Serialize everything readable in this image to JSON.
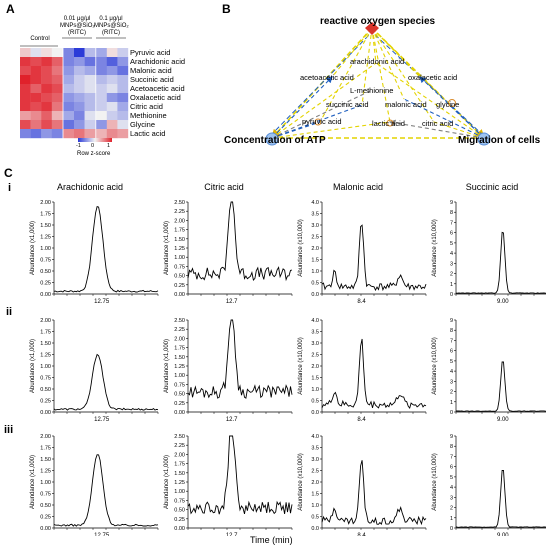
{
  "panels": {
    "A": "A",
    "B": "B",
    "C": "C"
  },
  "heatmap": {
    "groups": [
      {
        "label": "Control",
        "cols": 4
      },
      {
        "label_lines": [
          "0.01 μg/μl",
          "MNPs@SiO₂",
          "(RITC)"
        ],
        "cols": 3
      },
      {
        "label_lines": [
          "0.1 μg/μl",
          "MNPs@SiO₂",
          "(RITC)"
        ],
        "cols": 3
      }
    ],
    "rows": [
      "Pyruvic acid",
      "Arachidonic acid",
      "Malonic acid",
      "Succinic acid",
      "Acetoacetic acid",
      "Oxalacetic acid",
      "Citric acid",
      "Methionine",
      "Glycine",
      "Lactic acid"
    ],
    "values": [
      [
        0.2,
        -0.1,
        0.1,
        0.0,
        -0.6,
        -1.0,
        -0.3,
        -0.4,
        0.1,
        -0.2
      ],
      [
        0.9,
        0.8,
        0.9,
        0.7,
        -0.6,
        -0.5,
        -0.7,
        -0.6,
        -0.8,
        -0.5
      ],
      [
        0.8,
        0.9,
        0.8,
        0.6,
        -0.5,
        -0.3,
        -0.4,
        -0.6,
        -0.5,
        -0.7
      ],
      [
        1.0,
        0.9,
        0.8,
        0.7,
        -0.4,
        -0.2,
        -0.1,
        -0.3,
        -0.2,
        -0.3
      ],
      [
        0.9,
        0.7,
        0.9,
        0.8,
        -0.3,
        -0.2,
        -0.1,
        -0.2,
        -0.1,
        -0.3
      ],
      [
        0.9,
        0.9,
        0.8,
        0.7,
        -0.5,
        -0.4,
        -0.3,
        -0.2,
        -0.5,
        -0.6
      ],
      [
        0.9,
        0.8,
        0.9,
        0.6,
        -0.6,
        -0.5,
        -0.3,
        -0.2,
        -0.1,
        -0.4
      ],
      [
        0.4,
        0.5,
        0.7,
        0.3,
        -0.4,
        -0.6,
        -0.1,
        0.0,
        -0.2,
        -0.3
      ],
      [
        0.8,
        0.6,
        0.8,
        0.6,
        -0.7,
        -0.5,
        -0.2,
        -0.5,
        0.3,
        -0.1
      ],
      [
        -0.6,
        -0.7,
        -0.5,
        -0.6,
        0.5,
        0.6,
        0.4,
        0.3,
        0.5,
        0.4
      ]
    ],
    "scale": {
      "min": "-1",
      "mid": "0",
      "max": "1",
      "label": "Row z-score"
    },
    "colors": {
      "low": "#2b3bd8",
      "mid": "#f2f2f2",
      "high": "#e0212b"
    }
  },
  "network": {
    "hubs": [
      "reactive oxygen species",
      "Concentration of ATP",
      "Migration of cells"
    ],
    "metabolites": [
      "arachidonic acid",
      "acetoacetic acid",
      "oxalacetic acid",
      "L-methionine",
      "succinic acid",
      "malonic acid",
      "glycine",
      "pyruvic acid",
      "lactic acid",
      "citric acid"
    ],
    "colors": {
      "yellow": "#e3d300",
      "blue": "#1f5fbf",
      "gray": "#7f7f7f",
      "orange": "#d98a2b"
    }
  },
  "chromatograms": {
    "rows": [
      "i",
      "ii",
      "iii"
    ],
    "columns": [
      {
        "title": "Arachidonic acid",
        "ylabel": "Abundance (x1,000)",
        "xtick": "12.75",
        "yticks": [
          "0.00",
          "0.25",
          "0.50",
          "0.75",
          "1.00",
          "1.25",
          "1.50",
          "1.75",
          "2.00"
        ],
        "ymax": 2.0
      },
      {
        "title": "Citric acid",
        "ylabel": "Abundance (x1,000)",
        "xtick": "12.7",
        "yticks": [
          "0.00",
          "0.25",
          "0.50",
          "0.75",
          "1.00",
          "1.25",
          "1.50",
          "1.75",
          "2.00",
          "2.25",
          "2.50"
        ],
        "ymax": 2.5
      },
      {
        "title": "Malonic acid",
        "ylabel": "Abundance (x10,000)",
        "xtick": "8.4",
        "yticks": [
          "0.0",
          "0.5",
          "1.0",
          "1.5",
          "2.0",
          "2.5",
          "3.0",
          "3.5",
          "4.0"
        ],
        "ymax": 4.0
      },
      {
        "title": "Succinic acid",
        "ylabel": "Abundance (x10,000)",
        "xtick": "9.00",
        "yticks": [
          "0",
          "1",
          "2",
          "3",
          "4",
          "5",
          "6",
          "7",
          "8",
          "9"
        ],
        "ymax": 9.0
      }
    ],
    "xlabel": "Time (min)"
  },
  "chart_data": [
    {
      "type": "heatmap",
      "rows": [
        "Pyruvic acid",
        "Arachidonic acid",
        "Malonic acid",
        "Succinic acid",
        "Acetoacetic acid",
        "Oxalacetic acid",
        "Citric acid",
        "Methionine",
        "Glycine",
        "Lactic acid"
      ],
      "legend": "Row z-score",
      "range": [
        -1,
        1
      ]
    },
    {
      "type": "line",
      "title": "Arachidonic acid",
      "peaks": {
        "i": 1.85,
        "ii": 1.2,
        "iii": 1.55
      },
      "ylim": [
        0,
        2.0
      ]
    },
    {
      "type": "line",
      "title": "Citric acid",
      "peaks": {
        "i": 2.15,
        "ii": 2.3,
        "iii": 2.35
      },
      "ylim": [
        0,
        2.5
      ]
    },
    {
      "type": "line",
      "title": "Malonic acid",
      "peaks": {
        "i": 2.9,
        "ii": 2.85,
        "iii": 2.7
      },
      "ylim": [
        0,
        4.0
      ]
    },
    {
      "type": "line",
      "title": "Succinic acid",
      "peaks": {
        "i": 6.3,
        "ii": 5.1,
        "iii": 5.9
      },
      "ylim": [
        0,
        9.0
      ]
    }
  ]
}
